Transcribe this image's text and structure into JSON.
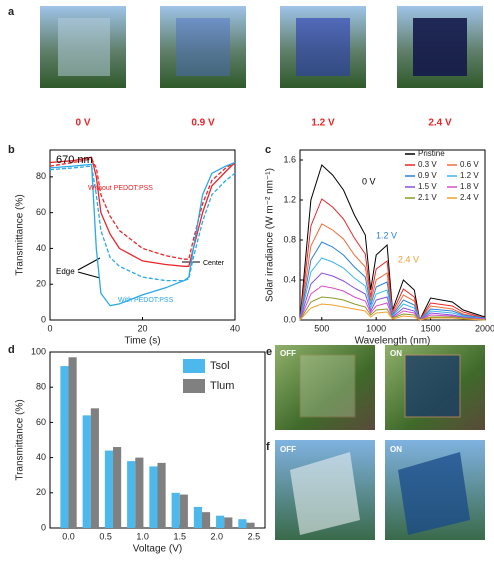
{
  "panel_labels": [
    "a",
    "b",
    "c",
    "d",
    "e",
    "f"
  ],
  "photos_a": [
    "0 V",
    "0.9 V",
    "1.2 V",
    "2.4 V"
  ],
  "photos_e": [
    "OFF",
    "ON"
  ],
  "photos_f": [
    "OFF",
    "ON"
  ],
  "chart_data": [
    {
      "type": "line",
      "xlabel": "Time (s)",
      "ylabel": "Transmittance (%)",
      "annotations": [
        "670 nm",
        "Without PEDOT:PSS",
        "With PEDOT:PSS",
        "Edge",
        "Center"
      ],
      "xlim": [
        0,
        40
      ],
      "xticks": [
        0,
        20,
        40
      ],
      "ylim": [
        0,
        95
      ],
      "yticks": [
        0,
        20,
        40,
        60,
        80
      ],
      "x": [
        0,
        5,
        9,
        10,
        11,
        13,
        15,
        20,
        25,
        29,
        30,
        31,
        33,
        35,
        38,
        40
      ],
      "series": [
        {
          "color": "#e8262a",
          "dashed": false,
          "values": [
            88,
            89,
            91,
            80,
            60,
            48,
            40,
            33,
            31,
            30,
            30,
            40,
            60,
            75,
            83,
            88
          ]
        },
        {
          "color": "#e8262a",
          "dashed": true,
          "values": [
            86,
            88,
            90,
            85,
            70,
            58,
            50,
            40,
            36,
            34,
            34,
            45,
            65,
            78,
            85,
            88
          ]
        },
        {
          "color": "#2aa8e8",
          "dashed": false,
          "values": [
            85,
            86,
            87,
            40,
            15,
            8,
            9,
            14,
            18,
            22,
            24,
            40,
            70,
            82,
            86,
            88
          ]
        },
        {
          "color": "#2aa8e8",
          "dashed": true,
          "values": [
            84,
            85,
            86,
            70,
            50,
            35,
            30,
            24,
            22,
            22,
            23,
            35,
            55,
            70,
            78,
            82
          ]
        }
      ]
    },
    {
      "type": "line",
      "xlabel": "Wavelength (nm)",
      "ylabel": "Solar irradiance (W m⁻² nm⁻¹)",
      "annotations": [
        "0 V",
        "1.2 V",
        "2.4 V"
      ],
      "xlim": [
        300,
        2000
      ],
      "xticks": [
        500,
        1000,
        1500,
        2000
      ],
      "ylim": [
        0,
        1.7
      ],
      "yticks": [
        {
          "value": 0,
          "label": "0.0"
        },
        0.4,
        0.8,
        1.2,
        1.6
      ],
      "x": [
        300,
        400,
        500,
        600,
        700,
        800,
        900,
        950,
        1000,
        1100,
        1150,
        1250,
        1350,
        1400,
        1500,
        1700,
        1800,
        2000
      ],
      "series": [
        {
          "name": "Pristine",
          "color": "#000000",
          "values": [
            0,
            1.2,
            1.55,
            1.45,
            1.3,
            1.05,
            0.85,
            0.3,
            0.65,
            0.75,
            0.1,
            0.4,
            0.3,
            0,
            0.22,
            0.18,
            0.1,
            0.03
          ]
        },
        {
          "name": "0.3 V",
          "color": "#e8262a",
          "values": [
            0,
            0.94,
            1.21,
            1.13,
            1.01,
            0.82,
            0.66,
            0.23,
            0.51,
            0.59,
            0.08,
            0.31,
            0.23,
            0,
            0.17,
            0.14,
            0.08,
            0.02
          ]
        },
        {
          "name": "0.6 V",
          "color": "#f06a3c",
          "values": [
            0,
            0.74,
            0.96,
            0.9,
            0.81,
            0.65,
            0.53,
            0.19,
            0.4,
            0.47,
            0.06,
            0.25,
            0.19,
            0,
            0.14,
            0.11,
            0.06,
            0.02
          ]
        },
        {
          "name": "0.9 V",
          "color": "#2a7fd8",
          "values": [
            0,
            0.6,
            0.78,
            0.73,
            0.65,
            0.53,
            0.43,
            0.15,
            0.33,
            0.38,
            0.05,
            0.2,
            0.15,
            0,
            0.11,
            0.09,
            0.05,
            0.02
          ]
        },
        {
          "name": "1.2 V",
          "color": "#3cb6ec",
          "values": [
            0,
            0.48,
            0.62,
            0.58,
            0.52,
            0.42,
            0.34,
            0.12,
            0.26,
            0.3,
            0.04,
            0.16,
            0.12,
            0,
            0.09,
            0.07,
            0.04,
            0.01
          ]
        },
        {
          "name": "1.5 V",
          "color": "#8a4fd8",
          "values": [
            0,
            0.36,
            0.47,
            0.44,
            0.39,
            0.32,
            0.26,
            0.09,
            0.2,
            0.23,
            0.03,
            0.12,
            0.09,
            0,
            0.07,
            0.05,
            0.03,
            0.01
          ]
        },
        {
          "name": "1.8 V",
          "color": "#d84fc8",
          "values": [
            0,
            0.26,
            0.34,
            0.32,
            0.29,
            0.23,
            0.19,
            0.07,
            0.14,
            0.17,
            0.02,
            0.09,
            0.07,
            0,
            0.05,
            0.04,
            0.02,
            0.01
          ]
        },
        {
          "name": "2.1 V",
          "color": "#8a9a2a",
          "values": [
            0,
            0.18,
            0.23,
            0.22,
            0.2,
            0.16,
            0.13,
            0.05,
            0.1,
            0.11,
            0.02,
            0.06,
            0.05,
            0,
            0.03,
            0.03,
            0.02,
            0
          ]
        },
        {
          "name": "2.4 V",
          "color": "#f0a030",
          "values": [
            0,
            0.12,
            0.16,
            0.15,
            0.13,
            0.11,
            0.09,
            0.03,
            0.07,
            0.08,
            0.01,
            0.04,
            0.03,
            0,
            0.02,
            0.02,
            0.01,
            0
          ]
        }
      ]
    },
    {
      "type": "bar",
      "xlabel": "Voltage (V)",
      "ylabel": "Transmittance (%)",
      "xlim": [
        -0.25,
        2.65
      ],
      "xticks": [
        {
          "value": 0,
          "label": "0.0"
        },
        0.5,
        {
          "value": 1,
          "label": "1.0"
        },
        1.5,
        {
          "value": 2,
          "label": "2.0"
        },
        2.5
      ],
      "ylim": [
        0,
        100
      ],
      "yticks": [
        0,
        20,
        40,
        60,
        80,
        100
      ],
      "x": [
        0,
        0.3,
        0.6,
        0.9,
        1.2,
        1.5,
        1.8,
        2.1,
        2.4
      ],
      "series": [
        {
          "name": "Tsol",
          "color": "#4db8ec",
          "values": [
            92,
            64,
            44,
            38,
            35,
            20,
            12,
            7,
            5
          ]
        },
        {
          "name": "Tlum",
          "color": "#808080",
          "values": [
            97,
            68,
            46,
            40,
            37,
            19,
            9,
            6,
            3
          ]
        }
      ]
    }
  ]
}
